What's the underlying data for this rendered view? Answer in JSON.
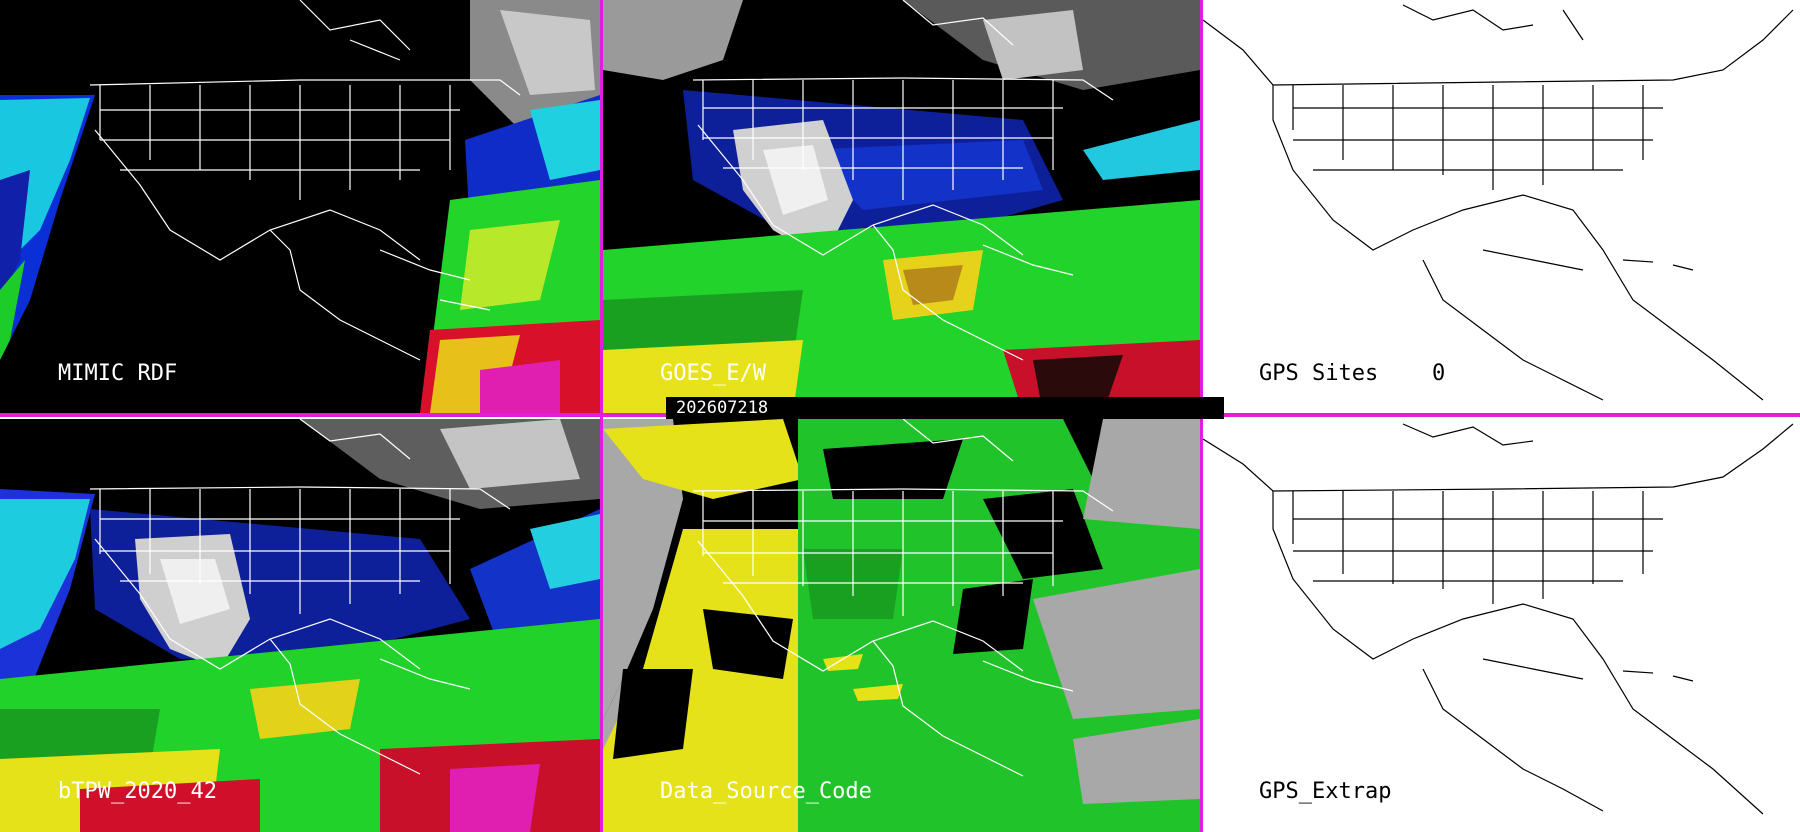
{
  "panels": {
    "mimic": {
      "label": "MIMIC RDF"
    },
    "goes": {
      "label": "GOES_E/W"
    },
    "gps_sites": {
      "label": "GPS Sites",
      "count": "0"
    },
    "btpw": {
      "label": "bTPW_2020_42"
    },
    "data_source": {
      "label": "Data_Source_Code"
    },
    "gps_extrap": {
      "label": "GPS_Extrap"
    }
  },
  "timestamp": "202607218",
  "colors": {
    "divider": "#e21ddc",
    "map_outline_dark_bg": "#ffffff",
    "map_outline_light_bg": "#000000"
  }
}
